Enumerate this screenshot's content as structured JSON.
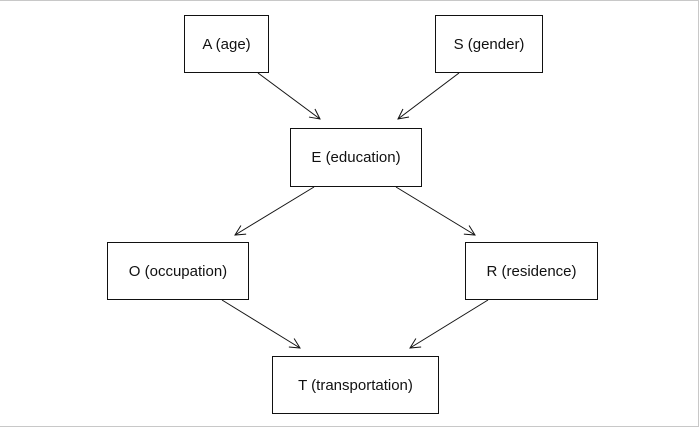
{
  "diagram": {
    "nodes": [
      {
        "id": "A",
        "label": "A (age)"
      },
      {
        "id": "S",
        "label": "S (gender)"
      },
      {
        "id": "E",
        "label": "E (education)"
      },
      {
        "id": "O",
        "label": "O (occupation)"
      },
      {
        "id": "R",
        "label": "R (residence)"
      },
      {
        "id": "T",
        "label": "T (transportation)"
      }
    ],
    "edges": [
      {
        "from": "A",
        "to": "E"
      },
      {
        "from": "S",
        "to": "E"
      },
      {
        "from": "E",
        "to": "O"
      },
      {
        "from": "E",
        "to": "R"
      },
      {
        "from": "O",
        "to": "T"
      },
      {
        "from": "R",
        "to": "T"
      }
    ],
    "colors": {
      "stroke": "#111111",
      "background": "#ffffff"
    }
  }
}
